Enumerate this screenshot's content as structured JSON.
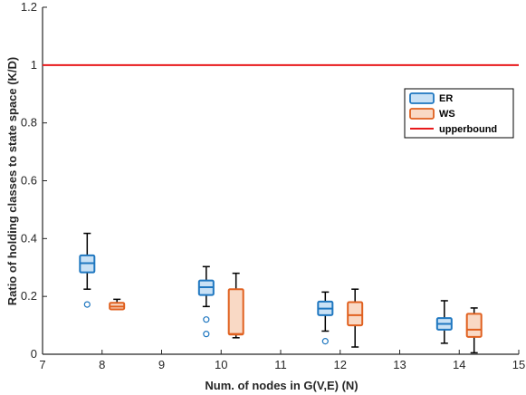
{
  "chart_data": {
    "type": "box",
    "xlabel": "Num. of nodes in G(V,E) (N)",
    "ylabel": "Ratio of holding classes to state space (K/D)",
    "xlim": [
      7,
      15
    ],
    "ylim": [
      0,
      1.2
    ],
    "xticks": [
      "7",
      "8",
      "9",
      "10",
      "11",
      "12",
      "13",
      "14",
      "15"
    ],
    "yticks": [
      "0",
      "0.2",
      "0.4",
      "0.6",
      "0.8",
      "1",
      "1.2"
    ],
    "grid": false,
    "legend_position": "right",
    "upperbound": {
      "name": "upperbound",
      "value": 1.0,
      "color": "#e8191b"
    },
    "series": [
      {
        "name": "ER",
        "color": "#1f77c0",
        "fill": "#c9e1f5",
        "boxes": [
          {
            "x": 7.75,
            "whisker_low": 0.225,
            "q1": 0.283,
            "median": 0.315,
            "q3": 0.342,
            "whisker_high": 0.418,
            "outliers": [
              0.172
            ]
          },
          {
            "x": 9.75,
            "whisker_low": 0.165,
            "q1": 0.205,
            "median": 0.232,
            "q3": 0.255,
            "whisker_high": 0.303,
            "outliers": [
              0.12,
              0.07
            ]
          },
          {
            "x": 11.75,
            "whisker_low": 0.08,
            "q1": 0.135,
            "median": 0.158,
            "q3": 0.182,
            "whisker_high": 0.215,
            "outliers": [
              0.045
            ]
          },
          {
            "x": 13.75,
            "whisker_low": 0.038,
            "q1": 0.085,
            "median": 0.105,
            "q3": 0.125,
            "whisker_high": 0.185,
            "outliers": []
          }
        ]
      },
      {
        "name": "WS",
        "color": "#e0601f",
        "fill": "#f9d9c5",
        "boxes": [
          {
            "x": 8.25,
            "whisker_low": 0.155,
            "q1": 0.155,
            "median": 0.165,
            "q3": 0.178,
            "whisker_high": 0.19,
            "outliers": []
          },
          {
            "x": 10.25,
            "whisker_low": 0.057,
            "q1": 0.068,
            "median": 0.07,
            "q3": 0.225,
            "whisker_high": 0.28,
            "outliers": []
          },
          {
            "x": 12.25,
            "whisker_low": 0.025,
            "q1": 0.1,
            "median": 0.135,
            "q3": 0.18,
            "whisker_high": 0.225,
            "outliers": []
          },
          {
            "x": 14.25,
            "whisker_low": 0.005,
            "q1": 0.06,
            "median": 0.085,
            "q3": 0.14,
            "whisker_high": 0.16,
            "outliers": []
          }
        ]
      }
    ]
  }
}
